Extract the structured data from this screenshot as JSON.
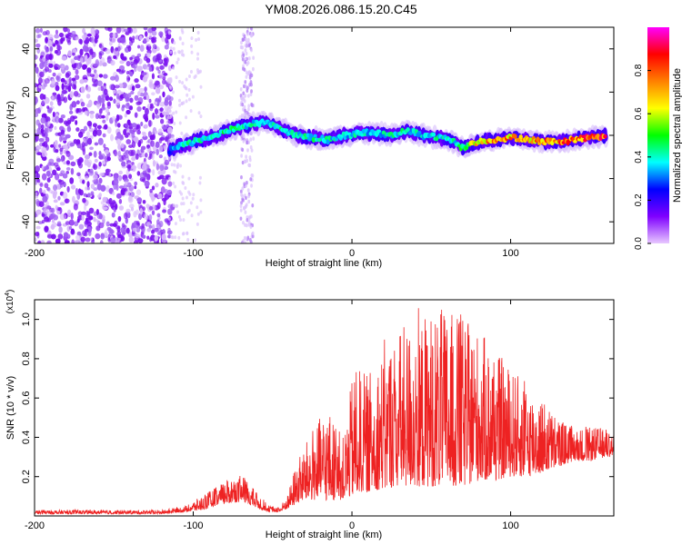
{
  "title": "YM08.2026.086.15.20.C45",
  "colorbar": {
    "label": "Normalized spectral amplitude",
    "range": [
      0,
      1
    ],
    "ticks": [
      0.0,
      0.2,
      0.4,
      0.6,
      0.8
    ],
    "tick_labels": [
      "0.0",
      "0.2",
      "0.4",
      "0.6",
      "0.8"
    ],
    "colors": [
      "#e8c8ff",
      "#7f00ff",
      "#0000ff",
      "#00ffff",
      "#00ff00",
      "#ffff00",
      "#ff8000",
      "#ff0000",
      "#ff00ff"
    ]
  },
  "chart_data": [
    {
      "type": "heatmap",
      "title": "YM08.2026.086.15.20.C45",
      "xlabel": "Height of straight line (km)",
      "ylabel": "Frequency (Hz)",
      "xlim": [
        -200,
        165
      ],
      "ylim": [
        -50,
        50
      ],
      "xticks": [
        -200,
        -100,
        0,
        100
      ],
      "xtick_labels": [
        "-200",
        "-100",
        "0",
        "100"
      ],
      "yticks": [
        -40,
        -20,
        0,
        20,
        40
      ],
      "ytick_labels": [
        "-40",
        "-20",
        "0",
        "20",
        "40"
      ],
      "colorbar_label": "Normalized spectral amplitude",
      "noise_region_km": [
        -200,
        -115
      ],
      "vertical_stripe_km": [
        -70,
        -62
      ],
      "ridge": {
        "x": [
          -115,
          -105,
          -95,
          -85,
          -75,
          -65,
          -55,
          -45,
          -35,
          -25,
          -15,
          -5,
          5,
          15,
          25,
          35,
          45,
          55,
          65,
          70,
          80,
          90,
          100,
          110,
          120,
          130,
          140,
          150,
          160
        ],
        "y": [
          -7,
          -4,
          -2,
          0,
          3,
          5,
          6,
          3,
          0,
          -1,
          -2,
          0,
          1,
          1,
          0,
          2,
          0,
          -1,
          -3,
          -6,
          -3,
          -2,
          -1,
          -2,
          -3,
          -3,
          -2,
          -1,
          0
        ],
        "amplitude": [
          0.35,
          0.45,
          0.45,
          0.5,
          0.5,
          0.45,
          0.4,
          0.45,
          0.45,
          0.45,
          0.45,
          0.4,
          0.45,
          0.4,
          0.45,
          0.45,
          0.4,
          0.45,
          0.45,
          0.55,
          0.75,
          0.8,
          0.8,
          0.75,
          0.85,
          0.85,
          0.9,
          0.9,
          0.9
        ]
      }
    },
    {
      "type": "line",
      "xlabel": "Height of straight line (km)",
      "ylabel": "SNR (10 * v/v)",
      "y_multiplier_label": "(x10",
      "y_multiplier_exp": "4",
      "y_multiplier_close": ")",
      "xlim": [
        -200,
        165
      ],
      "ylim": [
        0,
        1.1
      ],
      "xticks": [
        -200,
        -100,
        0,
        100
      ],
      "xtick_labels": [
        "-200",
        "-100",
        "0",
        "100"
      ],
      "yticks": [
        0.2,
        0.4,
        0.6,
        0.8,
        1.0
      ],
      "ytick_labels": [
        "0.2",
        "0.4",
        "0.6",
        "0.8",
        "1.0"
      ],
      "series": [
        {
          "name": "SNR",
          "color": "#ee2222",
          "envelope_x": [
            -200,
            -150,
            -120,
            -105,
            -95,
            -85,
            -75,
            -68,
            -60,
            -52,
            -45,
            -40,
            -35,
            -30,
            -25,
            -20,
            -15,
            -10,
            -5,
            0,
            5,
            10,
            20,
            30,
            40,
            50,
            60,
            70,
            80,
            90,
            100,
            110,
            120,
            130,
            140,
            150,
            160,
            165
          ],
          "envelope_y": [
            0.03,
            0.03,
            0.03,
            0.05,
            0.1,
            0.15,
            0.2,
            0.2,
            0.12,
            0.05,
            0.05,
            0.12,
            0.28,
            0.35,
            0.45,
            0.5,
            0.55,
            0.45,
            0.4,
            0.7,
            0.75,
            0.72,
            0.85,
            0.95,
            1.0,
            1.05,
            1.05,
            1.0,
            0.95,
            0.85,
            0.75,
            0.68,
            0.6,
            0.5,
            0.45,
            0.45,
            0.45,
            0.43
          ],
          "floor_y": [
            0.01,
            0.01,
            0.01,
            0.02,
            0.03,
            0.05,
            0.07,
            0.07,
            0.04,
            0.02,
            0.02,
            0.04,
            0.06,
            0.08,
            0.08,
            0.08,
            0.08,
            0.08,
            0.08,
            0.1,
            0.12,
            0.12,
            0.14,
            0.15,
            0.15,
            0.15,
            0.15,
            0.15,
            0.18,
            0.18,
            0.2,
            0.2,
            0.22,
            0.25,
            0.28,
            0.28,
            0.3,
            0.3
          ]
        }
      ]
    }
  ]
}
